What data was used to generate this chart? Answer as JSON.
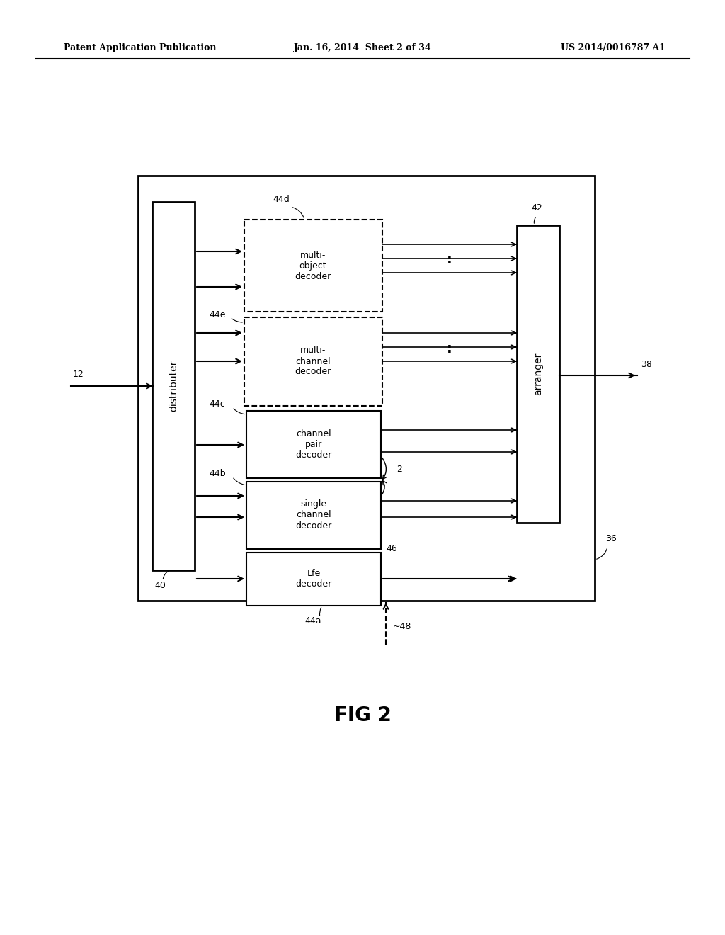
{
  "bg_color": "#ffffff",
  "text_color": "#000000",
  "header_left": "Patent Application Publication",
  "header_mid": "Jan. 16, 2014  Sheet 2 of 34",
  "header_right": "US 2014/0016787 A1",
  "fig_label": "FIG 2"
}
